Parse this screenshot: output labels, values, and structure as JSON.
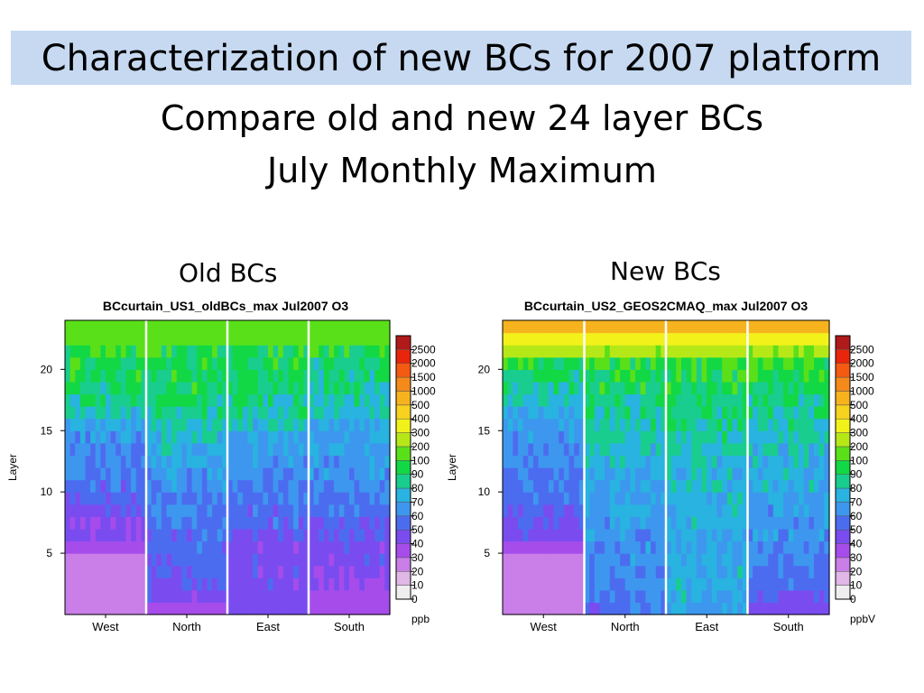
{
  "slide": {
    "title": "Characterization of new BCs for 2007 platform",
    "subtitle_1": "Compare old and new 24 layer BCs",
    "subtitle_2": "July Monthly Maximum"
  },
  "colors": {
    "title_bar": "#c6d9f1",
    "divider_line": "#ffffff"
  },
  "chart_data": [
    {
      "type": "heatmap",
      "panel_label": "Old BCs",
      "title": "BCcurtain_US1_oldBCs_max Jul2007 O3",
      "ylabel": "Layer",
      "y_ticks": [
        "5",
        "10",
        "15",
        "20"
      ],
      "x_tick_labels": [
        "West",
        "North",
        "East",
        "South"
      ],
      "ylim": [
        0,
        24
      ],
      "colorbar_units": "ppb",
      "colorbar_labels": [
        "0",
        "10",
        "20",
        "30",
        "40",
        "50",
        "60",
        "70",
        "80",
        "90",
        "100",
        "200",
        "300",
        "400",
        "500",
        "1000",
        "1500",
        "2000",
        "2500"
      ],
      "colorbar_colors": [
        "#eeeeee",
        "#e0b7e6",
        "#c97ee8",
        "#a64ceb",
        "#7a4cf0",
        "#4c6cf0",
        "#3e97ee",
        "#28b3e0",
        "#19cd8e",
        "#13d845",
        "#5ae019",
        "#b6e818",
        "#f2f21a",
        "#f7d21e",
        "#f7b31e",
        "#f58a1a",
        "#f55a12",
        "#e8260c",
        "#b11a1a"
      ],
      "boundaries": [
        "West|North",
        "North|East",
        "East|South"
      ],
      "layer_profiles": {
        "West": [
          25,
          25,
          25,
          25,
          25,
          35,
          42,
          42,
          48,
          52,
          55,
          60,
          62,
          62,
          65,
          70,
          78,
          85,
          88,
          90,
          92,
          98,
          180,
          180
        ],
        "North": [
          35,
          45,
          50,
          50,
          52,
          55,
          55,
          58,
          62,
          62,
          65,
          65,
          70,
          72,
          78,
          80,
          85,
          88,
          90,
          92,
          95,
          99,
          180,
          180
        ],
        "East": [
          45,
          45,
          45,
          45,
          45,
          45,
          50,
          55,
          55,
          58,
          60,
          62,
          65,
          68,
          70,
          78,
          82,
          85,
          88,
          90,
          92,
          96,
          180,
          180
        ],
        "South": [
          35,
          35,
          40,
          40,
          45,
          45,
          50,
          52,
          55,
          58,
          62,
          65,
          65,
          68,
          70,
          72,
          78,
          82,
          85,
          88,
          90,
          95,
          180,
          180
        ]
      }
    },
    {
      "type": "heatmap",
      "panel_label": "New BCs",
      "title": "BCcurtain_US2_GEOS2CMAQ_max Jul2007 O3",
      "ylabel": "Layer",
      "y_ticks": [
        "5",
        "10",
        "15",
        "20"
      ],
      "x_tick_labels": [
        "West",
        "North",
        "East",
        "South"
      ],
      "ylim": [
        0,
        24
      ],
      "colorbar_units": "ppbV",
      "colorbar_labels": [
        "0",
        "10",
        "20",
        "30",
        "40",
        "50",
        "60",
        "70",
        "80",
        "90",
        "100",
        "200",
        "300",
        "400",
        "500",
        "1000",
        "1500",
        "2000",
        "2500"
      ],
      "colorbar_colors": [
        "#eeeeee",
        "#e0b7e6",
        "#c97ee8",
        "#a64ceb",
        "#7a4cf0",
        "#4c6cf0",
        "#3e97ee",
        "#28b3e0",
        "#19cd8e",
        "#13d845",
        "#5ae019",
        "#b6e818",
        "#f2f21a",
        "#f7d21e",
        "#f7b31e",
        "#f58a1a",
        "#f55a12",
        "#e8260c",
        "#b11a1a"
      ],
      "boundaries": [
        "West|North",
        "North|East",
        "East|South"
      ],
      "layer_profiles": {
        "West": [
          25,
          25,
          25,
          25,
          25,
          35,
          45,
          48,
          50,
          55,
          58,
          60,
          62,
          62,
          65,
          68,
          72,
          80,
          85,
          90,
          95,
          250,
          350,
          800
        ],
        "North": [
          55,
          58,
          62,
          62,
          65,
          65,
          65,
          68,
          70,
          70,
          72,
          72,
          75,
          78,
          80,
          82,
          85,
          88,
          90,
          95,
          99,
          220,
          330,
          800
        ],
        "East": [
          72,
          72,
          72,
          72,
          70,
          70,
          70,
          72,
          72,
          72,
          75,
          75,
          78,
          80,
          82,
          85,
          88,
          90,
          92,
          95,
          99,
          230,
          350,
          800
        ],
        "South": [
          45,
          50,
          55,
          58,
          62,
          62,
          65,
          65,
          68,
          70,
          72,
          72,
          75,
          78,
          80,
          82,
          85,
          88,
          90,
          95,
          99,
          220,
          330,
          800
        ]
      }
    }
  ]
}
